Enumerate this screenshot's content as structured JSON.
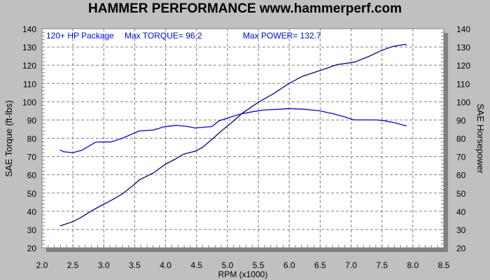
{
  "chart_data": {
    "type": "line",
    "title": "HAMMER PERFORMANCE www.hammerperf.com",
    "xlabel": "RPM (x1000)",
    "ylabel": "SAE Torque (ft-lbs)",
    "ylabel_right": "SAE Horsepower",
    "xlim": [
      2.0,
      8.5
    ],
    "ylim": [
      20,
      140
    ],
    "ylim_right": [
      20,
      140
    ],
    "x_ticks": [
      "2.0",
      "2.5",
      "3.0",
      "3.5",
      "4.0",
      "4.5",
      "5.0",
      "5.5",
      "6.0",
      "6.5",
      "7.0",
      "7.5",
      "8.0",
      "8.5"
    ],
    "y_ticks": [
      "20",
      "30",
      "40",
      "50",
      "60",
      "70",
      "80",
      "90",
      "100",
      "110",
      "120",
      "130",
      "140"
    ],
    "grid": true,
    "annotations": {
      "package": "120+ HP Package",
      "max_torque": "Max TORQUE= 96.2",
      "max_power": "Max POWER= 132.7"
    },
    "colors": {
      "torque": "#0000ff",
      "power": "#00009c",
      "background": "#c0c0c0",
      "plot": "#ffffff"
    },
    "series": [
      {
        "key": "torque",
        "points": [
          [
            2.29,
            73.6
          ],
          [
            2.35,
            72.6
          ],
          [
            2.5,
            72.1
          ],
          [
            2.65,
            73.5
          ],
          [
            2.75,
            75.5
          ],
          [
            2.87,
            77.9
          ],
          [
            3.12,
            78
          ],
          [
            3.3,
            80
          ],
          [
            3.57,
            84
          ],
          [
            3.8,
            84.5
          ],
          [
            3.99,
            86.4
          ],
          [
            4.17,
            87
          ],
          [
            4.35,
            86.5
          ],
          [
            4.47,
            85.6
          ],
          [
            4.58,
            85.9
          ],
          [
            4.75,
            86.4
          ],
          [
            4.86,
            89.5
          ],
          [
            5.0,
            91
          ],
          [
            5.2,
            93.2
          ],
          [
            5.4,
            94.5
          ],
          [
            5.58,
            95.5
          ],
          [
            5.8,
            95.8
          ],
          [
            5.98,
            96.2
          ],
          [
            6.2,
            96
          ],
          [
            6.48,
            95.1
          ],
          [
            6.7,
            93.5
          ],
          [
            6.89,
            91.8
          ],
          [
            7.04,
            90.1
          ],
          [
            7.42,
            90
          ],
          [
            7.55,
            89.5
          ],
          [
            7.72,
            88.4
          ],
          [
            7.9,
            86.7
          ]
        ]
      },
      {
        "key": "power",
        "points": [
          [
            2.29,
            32
          ],
          [
            2.5,
            34.3
          ],
          [
            2.65,
            37
          ],
          [
            2.79,
            40
          ],
          [
            2.95,
            43
          ],
          [
            3.13,
            46.2
          ],
          [
            3.3,
            49.5
          ],
          [
            3.5,
            54.9
          ],
          [
            3.58,
            57.3
          ],
          [
            3.8,
            61
          ],
          [
            3.99,
            65.6
          ],
          [
            4.15,
            68.5
          ],
          [
            4.29,
            71.3
          ],
          [
            4.48,
            72.9
          ],
          [
            4.6,
            75
          ],
          [
            4.71,
            78.3
          ],
          [
            4.78,
            80.3
          ],
          [
            4.9,
            84
          ],
          [
            5.05,
            88
          ],
          [
            5.24,
            93.7
          ],
          [
            5.5,
            99.7
          ],
          [
            5.75,
            104.5
          ],
          [
            5.98,
            109.7
          ],
          [
            6.21,
            113.9
          ],
          [
            6.55,
            117.7
          ],
          [
            6.77,
            120.3
          ],
          [
            7.06,
            121.7
          ],
          [
            7.3,
            125
          ],
          [
            7.5,
            128.2
          ],
          [
            7.68,
            130.3
          ],
          [
            7.87,
            131.4
          ],
          [
            7.9,
            131
          ]
        ]
      }
    ]
  }
}
